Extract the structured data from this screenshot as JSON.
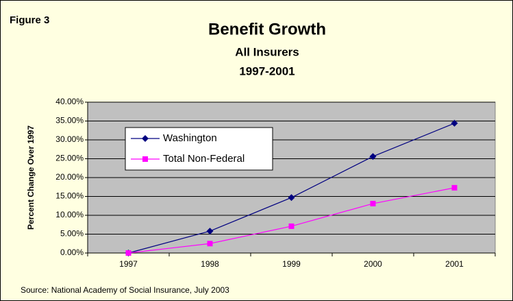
{
  "chart_data": {
    "type": "line",
    "figure_label": "Figure 3",
    "title": "Benefit Growth",
    "subtitle": [
      "All Insurers",
      "1997-2001"
    ],
    "y_label": "Percent Change Over 1997",
    "source": "Source: National Academy of Social Insurance, July 2003",
    "categories": [
      "1997",
      "1998",
      "1999",
      "2000",
      "2001"
    ],
    "series": [
      {
        "name": "Washington",
        "color": "#000080",
        "marker": "diamond",
        "values": [
          0,
          5.8,
          14.7,
          25.6,
          34.4
        ]
      },
      {
        "name": "Total Non-Federal",
        "color": "#FF00FF",
        "marker": "square",
        "values": [
          0,
          2.5,
          7.1,
          13.1,
          17.3
        ]
      }
    ],
    "ylim": [
      0,
      40
    ],
    "yticks": [
      {
        "value": 0,
        "label": "0.00%"
      },
      {
        "value": 5,
        "label": "5.00%"
      },
      {
        "value": 10,
        "label": "10.00%"
      },
      {
        "value": 15,
        "label": "15.00%"
      },
      {
        "value": 20,
        "label": "20.00%"
      },
      {
        "value": 25,
        "label": "25.00%"
      },
      {
        "value": 30,
        "label": "30.00%"
      },
      {
        "value": 35,
        "label": "35.00%"
      },
      {
        "value": 40,
        "label": "40.00%"
      }
    ],
    "grid": true,
    "plot_background": "#C0C0C0",
    "background": "#FFFFE1",
    "legend": "upper left"
  }
}
